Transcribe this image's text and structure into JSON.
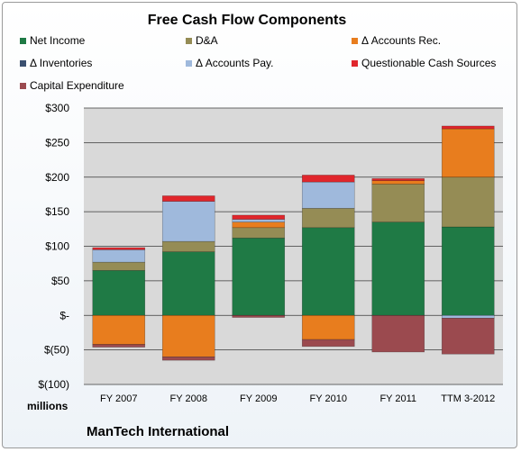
{
  "chart_data": {
    "type": "bar",
    "stacked": true,
    "title": "Free Cash Flow Components",
    "ylabel": "millions",
    "ylim": [
      -100,
      300
    ],
    "yticks": [
      300,
      250,
      200,
      150,
      100,
      50,
      0,
      -50,
      -100
    ],
    "ytick_labels": [
      "$300",
      "$250",
      "$200",
      "$150",
      "$100",
      "$50",
      "$-",
      "$(50)",
      "$(100)"
    ],
    "grid": true,
    "legend_position": "top",
    "categories": [
      "FY 2007",
      "FY 2008",
      "FY 2009",
      "FY 2010",
      "FY 2011",
      "TTM 3-2012"
    ],
    "series": [
      {
        "name": "Net Income",
        "color": "#1f7a45",
        "values": [
          65,
          92,
          112,
          127,
          135,
          128
        ]
      },
      {
        "name": "D&A",
        "color": "#958c55",
        "values": [
          12,
          15,
          15,
          28,
          55,
          72
        ]
      },
      {
        "name": "Δ Accounts Rec.",
        "color": "#e87d1e",
        "values": [
          -42,
          -60,
          8,
          -35,
          5,
          70
        ]
      },
      {
        "name": "Δ Inventories",
        "color": "#3b5070",
        "values": [
          0,
          0,
          0,
          0,
          0,
          0
        ]
      },
      {
        "name": "Δ Accounts Pay.",
        "color": "#9fb9dc",
        "values": [
          18,
          58,
          4,
          38,
          0,
          -4
        ]
      },
      {
        "name": "Questionable Cash Sources",
        "color": "#e0262c",
        "values": [
          3,
          8,
          6,
          10,
          3,
          4
        ]
      },
      {
        "name": "Capital Expenditure",
        "color": "#9b4a4f",
        "values": [
          -4,
          -5,
          -3,
          -10,
          -53,
          -52
        ]
      }
    ],
    "annotation": "ManTech International"
  }
}
